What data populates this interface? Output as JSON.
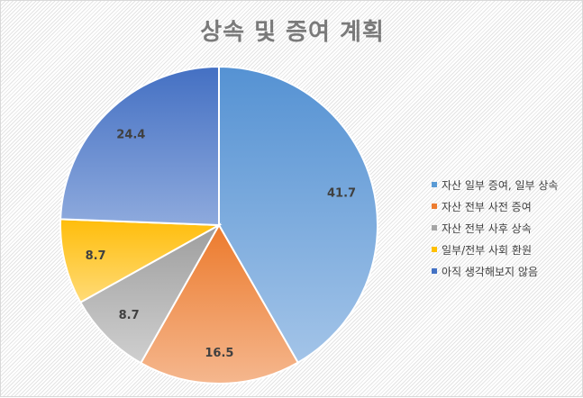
{
  "chart_data": {
    "type": "pie",
    "title": "상속 및 증여 계획",
    "categories": [
      "자산 일부 증여, 일부 상속",
      "자산 전부 사전 증여",
      "자산 전부 사후 상속",
      "일부/전부 사회 환원",
      "아직 생각해보지 않음"
    ],
    "values": [
      41.7,
      16.5,
      8.7,
      8.7,
      24.4
    ],
    "colors": [
      "#5b9bd5",
      "#ed7d31",
      "#a5a5a5",
      "#ffc000",
      "#4472c4"
    ],
    "legend_position": "right",
    "data_labels": [
      "41.7",
      "16.5",
      "8.7",
      "8.7",
      "24.4"
    ]
  },
  "title": "상속 및 증여 계획",
  "legend": [
    {
      "label": "자산 일부 증여, 일부 상속",
      "color": "#5b9bd5"
    },
    {
      "label": "자산 전부 사전 증여",
      "color": "#ed7d31"
    },
    {
      "label": "자산 전부 사후 상속",
      "color": "#a5a5a5"
    },
    {
      "label": "일부/전부 사회 환원",
      "color": "#ffc000"
    },
    {
      "label": "아직 생각해보지 않음",
      "color": "#4472c4"
    }
  ]
}
